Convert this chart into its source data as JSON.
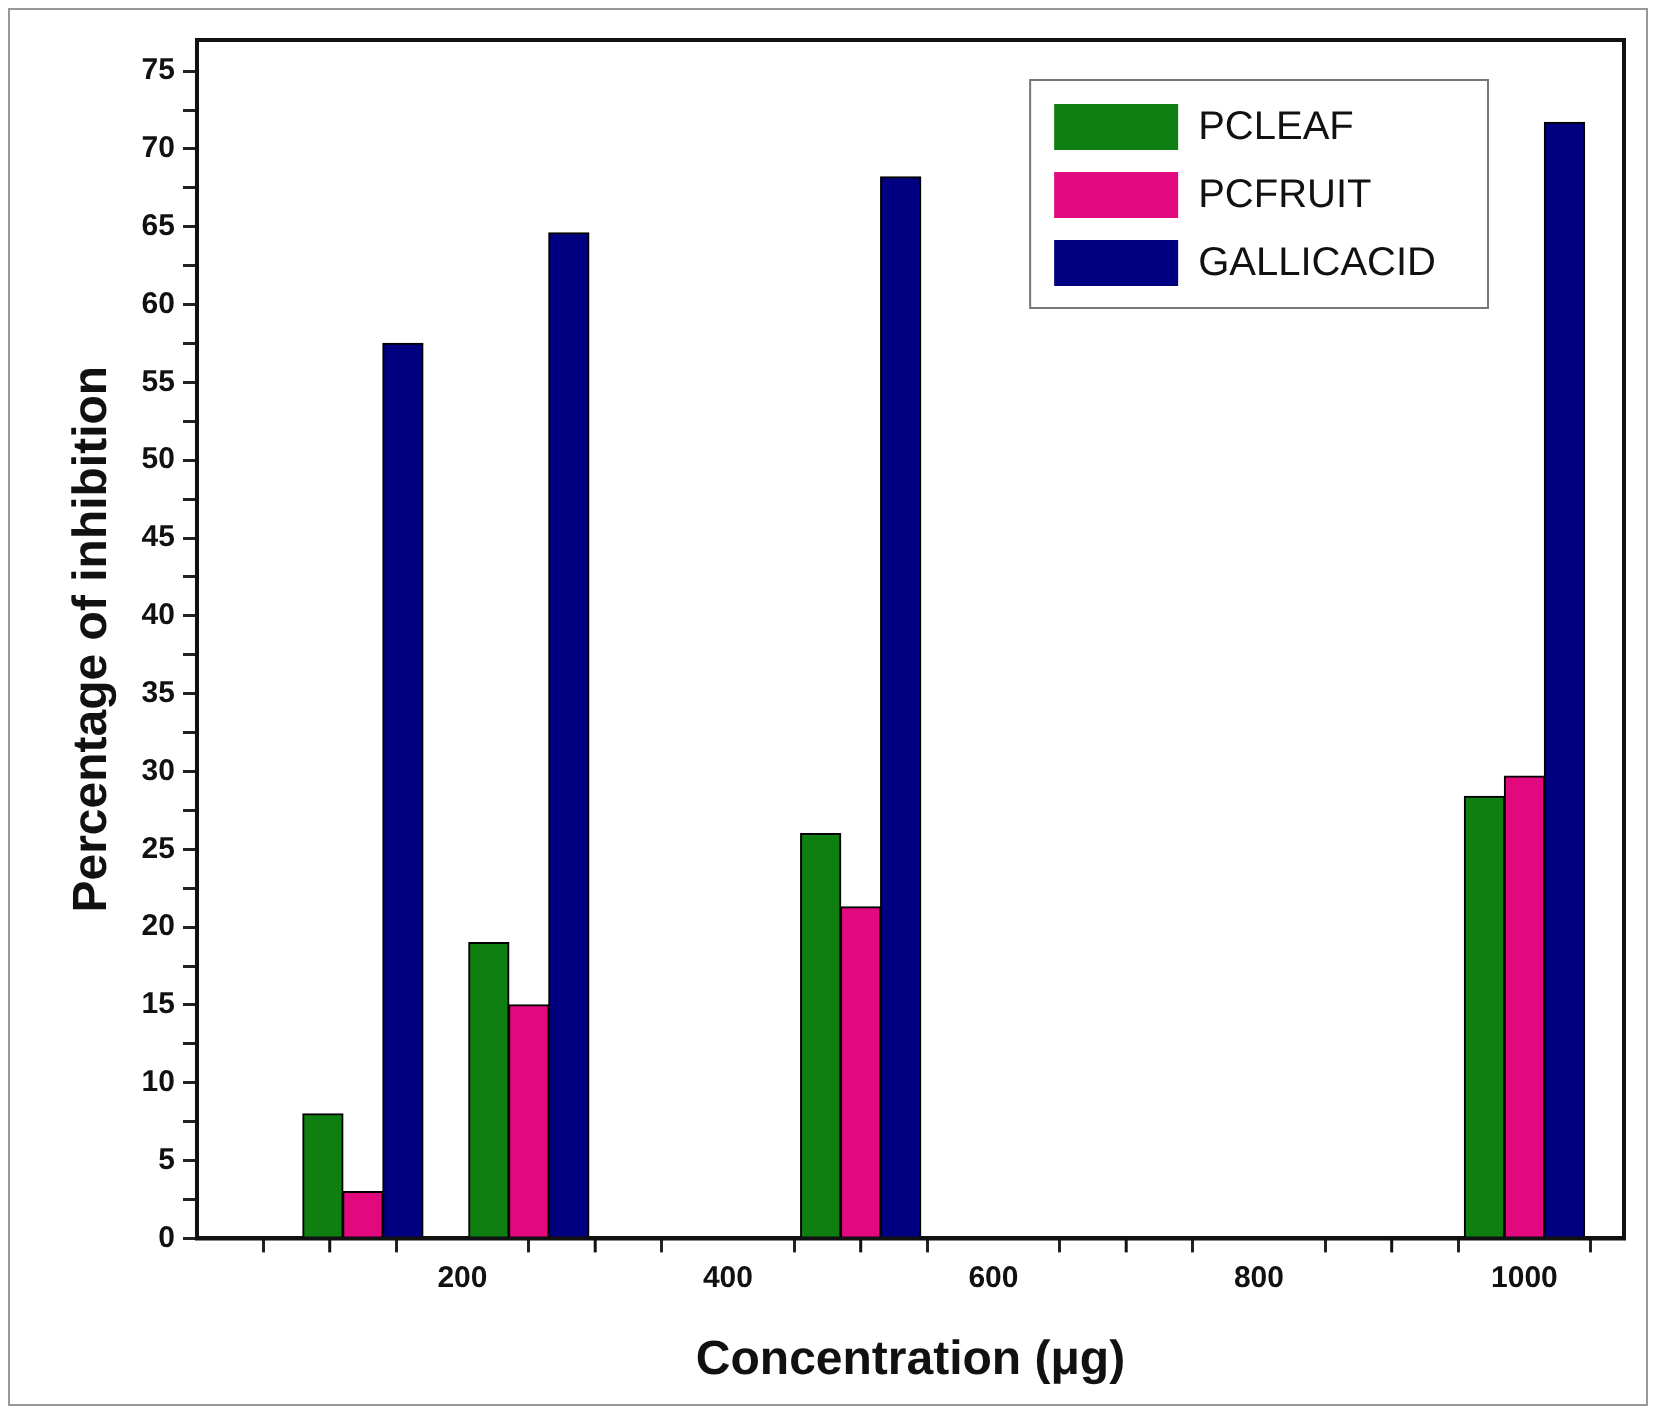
{
  "chart_data": {
    "type": "bar",
    "xlabel": "Concentration (μg)",
    "ylabel": "Percentage of inhibition",
    "x": [
      125,
      250,
      500,
      1000
    ],
    "series": [
      {
        "name": "PCLEAF",
        "color": "#0f7f12",
        "values": [
          8,
          19,
          26,
          28.4
        ]
      },
      {
        "name": "PCFRUIT",
        "color": "#e2097f",
        "values": [
          3,
          15,
          21.3,
          29.7
        ]
      },
      {
        "name": "GALLICACID",
        "color": "#000080",
        "values": [
          57.5,
          64.6,
          68.2,
          71.7
        ]
      }
    ],
    "xlim": [
      0,
      1075
    ],
    "xticks": [
      {
        "value": 100,
        "label": null
      },
      200,
      {
        "value": 300,
        "label": null
      },
      400,
      {
        "value": 500,
        "label": null
      },
      600,
      {
        "value": 700,
        "label": null
      },
      800,
      {
        "value": 900,
        "label": null
      },
      1000
    ],
    "ylim": [
      0,
      77
    ],
    "yticks": [
      0,
      {
        "value": 2.5,
        "label": null
      },
      5,
      {
        "value": 7.5,
        "label": null
      },
      10,
      {
        "value": 12.5,
        "label": null
      },
      15,
      {
        "value": 17.5,
        "label": null
      },
      20,
      {
        "value": 22.5,
        "label": null
      },
      25,
      {
        "value": 27.5,
        "label": null
      },
      30,
      {
        "value": 32.5,
        "label": null
      },
      35,
      {
        "value": 37.5,
        "label": null
      },
      40,
      {
        "value": 42.5,
        "label": null
      },
      45,
      {
        "value": 47.5,
        "label": null
      },
      50,
      {
        "value": 52.5,
        "label": null
      },
      55,
      {
        "value": 57.5,
        "label": null
      },
      60,
      {
        "value": 62.5,
        "label": null
      },
      65,
      {
        "value": 67.5,
        "label": null
      },
      70,
      {
        "value": 72.5,
        "label": null
      },
      75
    ],
    "grid": false,
    "legend": "top right"
  }
}
